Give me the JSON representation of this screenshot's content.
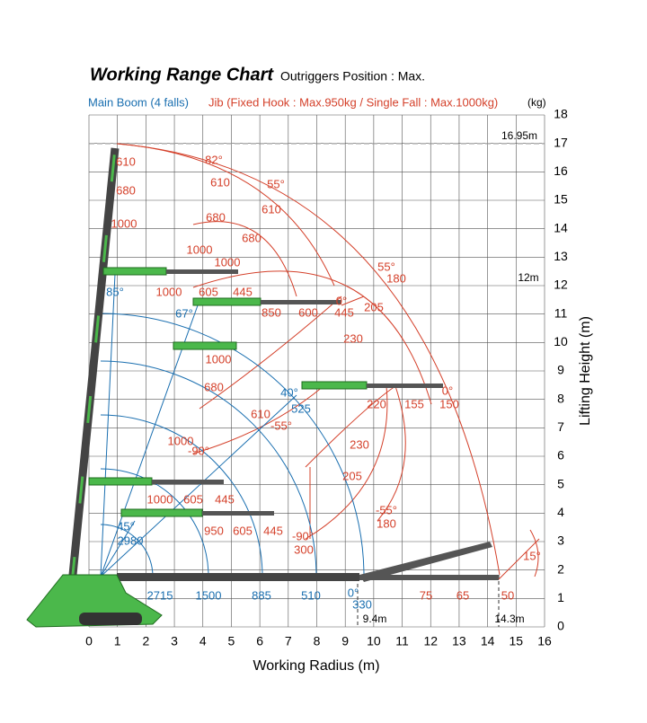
{
  "header": {
    "title": "Working Range Chart",
    "subtitle": "Outriggers Position : Max."
  },
  "legend": {
    "main_boom": "Main Boom (4 falls)",
    "jib": "Jib (Fixed Hook : Max.950kg / Single Fall : Max.1000kg)",
    "unit": "(kg)"
  },
  "x_axis": {
    "label": "Working Radius (m)",
    "ticks": [
      0,
      1,
      2,
      3,
      4,
      5,
      6,
      7,
      8,
      9,
      10,
      11,
      12,
      13,
      14,
      15,
      16
    ]
  },
  "y_axis": {
    "label": "Lifting Height (m)",
    "ticks": [
      0,
      1,
      2,
      3,
      4,
      5,
      6,
      7,
      8,
      9,
      10,
      11,
      12,
      13,
      14,
      15,
      16,
      17,
      18
    ]
  },
  "main_boom_labels": [
    "85°",
    "67°",
    "40°",
    "525",
    "45°",
    "2980",
    "2715",
    "1500",
    "885",
    "510",
    "0°",
    "330"
  ],
  "jib_labels": [
    "610",
    "680",
    "1000",
    "82°",
    "610",
    "55°",
    "610",
    "680",
    "680",
    "1000",
    "1000",
    "1000",
    "605",
    "445",
    "850",
    "600",
    "0°",
    "445",
    "55°",
    "180",
    "205",
    "230",
    "1000",
    "680",
    "610",
    "-55°",
    "1000",
    "-90°",
    "220",
    "155",
    "0°",
    "150",
    "230",
    "205",
    "1000",
    "605",
    "445",
    "-55°",
    "180",
    "950",
    "605",
    "445",
    "-90°",
    "300",
    "75",
    "65",
    "50"
  ],
  "markers": [
    "16.95m",
    "12m",
    "9.4m",
    "14.3m",
    "15°"
  ]
}
